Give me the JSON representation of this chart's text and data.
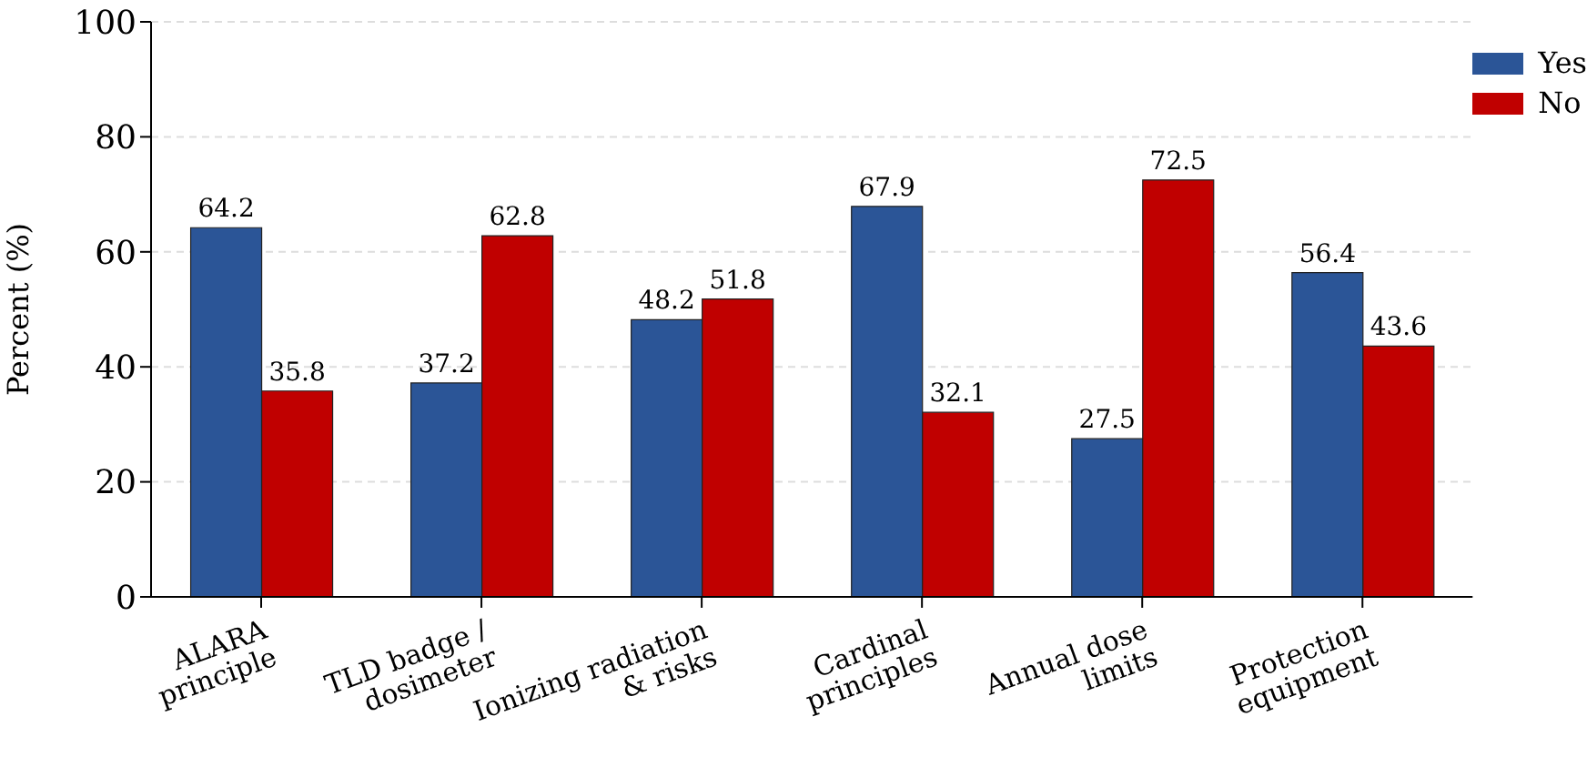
{
  "chart_data": {
    "type": "bar",
    "ylabel": "Percent (%)",
    "categories": [
      "ALARA\nprinciple",
      "TLD badge /\ndosimeter",
      "Ionizing radiation\n& risks",
      "Cardinal\nprinciples",
      "Annual dose\nlimits",
      "Protection\nequipment"
    ],
    "series": [
      {
        "name": "Yes",
        "color": "#2b5597",
        "values": [
          64.2,
          37.2,
          48.2,
          67.9,
          27.5,
          56.4
        ]
      },
      {
        "name": "No",
        "color": "#c00000",
        "values": [
          35.8,
          62.8,
          51.8,
          32.1,
          72.5,
          43.6
        ]
      }
    ],
    "ylim": [
      0,
      100
    ],
    "yticks": [
      0,
      20,
      40,
      60,
      80,
      100
    ],
    "grid": "y",
    "legend": "top right",
    "data_labels": true
  }
}
